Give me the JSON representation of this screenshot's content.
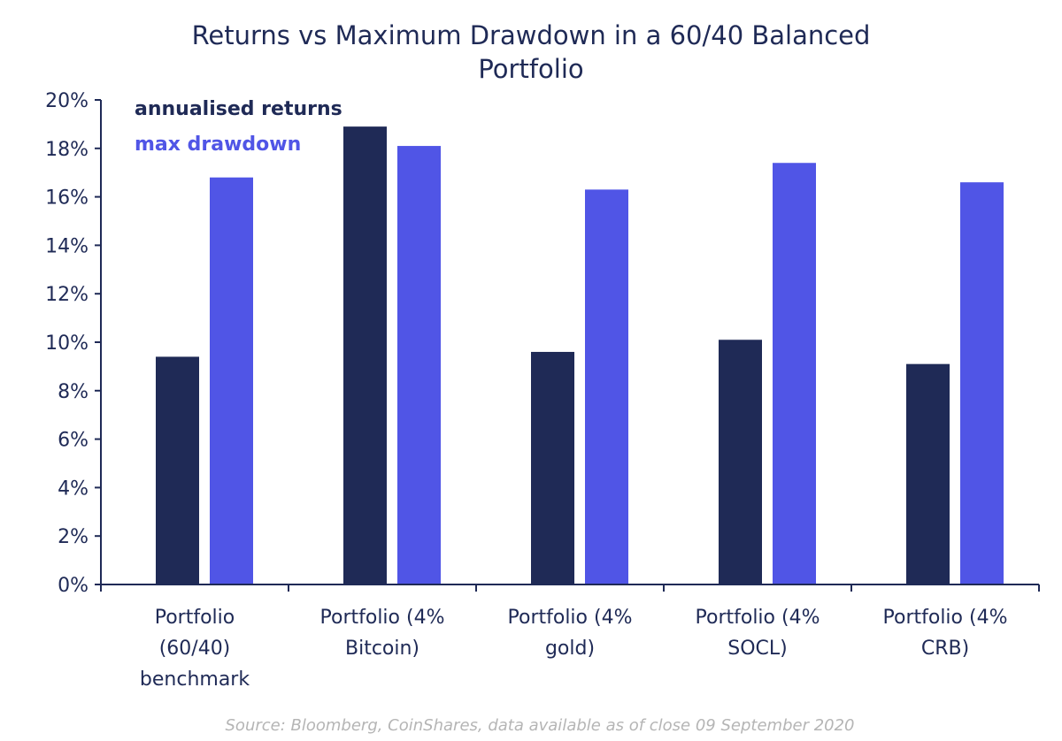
{
  "chart_data": {
    "type": "bar",
    "title_lines": [
      "Returns vs Maximum Drawdown in a 60/40 Balanced",
      "Portfolio"
    ],
    "categories": [
      [
        "Portfolio",
        "(60/40)",
        "benchmark"
      ],
      [
        "Portfolio (4%",
        "Bitcoin)"
      ],
      [
        "Portfolio (4%",
        "gold)"
      ],
      [
        "Portfolio (4%",
        "SOCL)"
      ],
      [
        "Portfolio (4%",
        "CRB)"
      ]
    ],
    "series": [
      {
        "name": "annualised returns",
        "color": "#1f2a56",
        "values": [
          9.4,
          18.9,
          9.6,
          10.1,
          9.1
        ]
      },
      {
        "name": "max drawdown",
        "color": "#5055e6",
        "values": [
          16.8,
          18.1,
          16.3,
          17.4,
          16.6
        ]
      }
    ],
    "ylim": [
      0,
      20
    ],
    "yticks": [
      "0%",
      "2%",
      "4%",
      "6%",
      "8%",
      "10%",
      "12%",
      "14%",
      "16%",
      "18%",
      "20%"
    ],
    "ytick_values": [
      0,
      2,
      4,
      6,
      8,
      10,
      12,
      14,
      16,
      18,
      20
    ],
    "legend_position": "top-left",
    "grid": false,
    "source": "Source: Bloomberg, CoinShares, data available as of close 09 September 2020"
  }
}
